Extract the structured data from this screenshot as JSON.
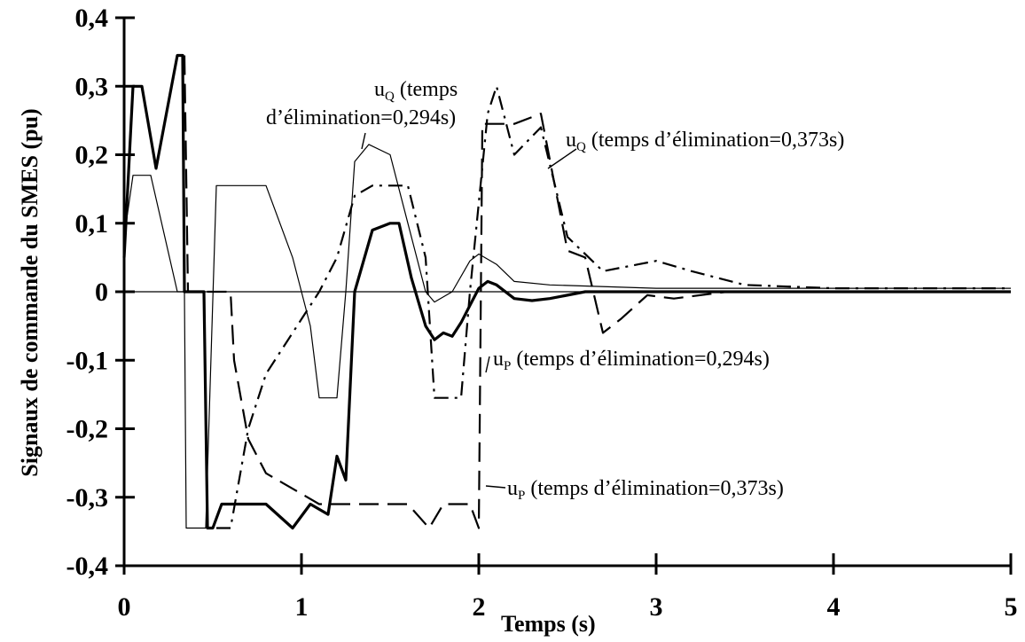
{
  "chart_data": {
    "type": "line",
    "title": "",
    "xlabel": "Temps (s)",
    "ylabel": "Signaux de commande du SMES (pu)",
    "xlim": [
      0,
      5
    ],
    "ylim": [
      -0.4,
      0.4
    ],
    "x_ticks": [
      "0",
      "1",
      "2",
      "3",
      "4",
      "5"
    ],
    "y_ticks": [
      "0,4",
      "0,3",
      "0,2",
      "0,1",
      "0",
      "-0,1",
      "-0,2",
      "-0,3",
      "-0,4"
    ],
    "grid": false,
    "legend": "none",
    "series": [
      {
        "key": "uP_0294",
        "style": "thick-solid",
        "points": [
          [
            0,
            0.05
          ],
          [
            0.05,
            0.3
          ],
          [
            0.1,
            0.3
          ],
          [
            0.18,
            0.18
          ],
          [
            0.3,
            0.345
          ],
          [
            0.33,
            0.345
          ],
          [
            0.34,
            0
          ],
          [
            0.45,
            0
          ],
          [
            0.47,
            -0.345
          ],
          [
            0.5,
            -0.345
          ],
          [
            0.55,
            -0.31
          ],
          [
            0.8,
            -0.31
          ],
          [
            0.95,
            -0.345
          ],
          [
            1.05,
            -0.31
          ],
          [
            1.15,
            -0.325
          ],
          [
            1.2,
            -0.24
          ],
          [
            1.25,
            -0.275
          ],
          [
            1.3,
            0
          ],
          [
            1.4,
            0.09
          ],
          [
            1.5,
            0.1
          ],
          [
            1.55,
            0.1
          ],
          [
            1.62,
            0.02
          ],
          [
            1.7,
            -0.05
          ],
          [
            1.75,
            -0.07
          ],
          [
            1.8,
            -0.06
          ],
          [
            1.85,
            -0.065
          ],
          [
            1.9,
            -0.045
          ],
          [
            1.95,
            -0.02
          ],
          [
            2.0,
            0.005
          ],
          [
            2.05,
            0.015
          ],
          [
            2.1,
            0.01
          ],
          [
            2.2,
            -0.01
          ],
          [
            2.3,
            -0.013
          ],
          [
            2.4,
            -0.01
          ],
          [
            2.6,
            0
          ],
          [
            3.0,
            0
          ],
          [
            5,
            0
          ]
        ]
      },
      {
        "key": "uQ_0294",
        "style": "thin-solid",
        "points": [
          [
            0,
            0.08
          ],
          [
            0.05,
            0.17
          ],
          [
            0.15,
            0.17
          ],
          [
            0.3,
            0
          ],
          [
            0.34,
            0
          ],
          [
            0.35,
            -0.345
          ],
          [
            0.46,
            -0.345
          ],
          [
            0.52,
            0.155
          ],
          [
            0.8,
            0.155
          ],
          [
            0.95,
            0.05
          ],
          [
            1.05,
            -0.05
          ],
          [
            1.1,
            -0.155
          ],
          [
            1.2,
            -0.155
          ],
          [
            1.25,
            0
          ],
          [
            1.3,
            0.19
          ],
          [
            1.38,
            0.215
          ],
          [
            1.5,
            0.2
          ],
          [
            1.6,
            0.1
          ],
          [
            1.7,
            0
          ],
          [
            1.75,
            -0.015
          ],
          [
            1.85,
            0
          ],
          [
            1.95,
            0.045
          ],
          [
            2.0,
            0.055
          ],
          [
            2.1,
            0.04
          ],
          [
            2.2,
            0.015
          ],
          [
            2.4,
            0.01
          ],
          [
            3.0,
            0.005
          ],
          [
            5,
            0.005
          ]
        ]
      },
      {
        "key": "uP_0373",
        "style": "dashed",
        "points": [
          [
            0.34,
            0.345
          ],
          [
            0.36,
            0
          ],
          [
            0.6,
            0
          ],
          [
            0.62,
            -0.1
          ],
          [
            0.7,
            -0.215
          ],
          [
            0.8,
            -0.265
          ],
          [
            1.0,
            -0.295
          ],
          [
            1.1,
            -0.31
          ],
          [
            1.6,
            -0.31
          ],
          [
            1.72,
            -0.345
          ],
          [
            1.8,
            -0.31
          ],
          [
            1.95,
            -0.31
          ],
          [
            2.0,
            -0.345
          ],
          [
            2.02,
            0.245
          ],
          [
            2.2,
            0.245
          ],
          [
            2.35,
            0.26
          ],
          [
            2.5,
            0.06
          ],
          [
            2.6,
            0.05
          ],
          [
            2.7,
            -0.06
          ],
          [
            2.8,
            -0.04
          ],
          [
            2.95,
            -0.005
          ],
          [
            3.1,
            -0.01
          ],
          [
            3.4,
            0
          ],
          [
            5,
            0
          ]
        ]
      },
      {
        "key": "uQ_0373",
        "style": "dash-dot",
        "points": [
          [
            0.52,
            -0.345
          ],
          [
            0.6,
            -0.345
          ],
          [
            0.7,
            -0.2
          ],
          [
            0.8,
            -0.12
          ],
          [
            1.0,
            -0.04
          ],
          [
            1.1,
            0
          ],
          [
            1.2,
            0.05
          ],
          [
            1.3,
            0.14
          ],
          [
            1.4,
            0.155
          ],
          [
            1.6,
            0.155
          ],
          [
            1.7,
            0.05
          ],
          [
            1.75,
            -0.155
          ],
          [
            1.9,
            -0.155
          ],
          [
            1.95,
            0
          ],
          [
            2.05,
            0.26
          ],
          [
            2.1,
            0.3
          ],
          [
            2.2,
            0.2
          ],
          [
            2.35,
            0.24
          ],
          [
            2.5,
            0.08
          ],
          [
            2.7,
            0.03
          ],
          [
            2.9,
            0.04
          ],
          [
            3.0,
            0.045
          ],
          [
            3.2,
            0.03
          ],
          [
            3.5,
            0.01
          ],
          [
            4.0,
            0.005
          ],
          [
            5,
            0.005
          ]
        ]
      }
    ],
    "annotations": [
      {
        "key": "uQ_0294_lbl",
        "main": "u",
        "sub": "Q",
        "rest": " (temps"
      },
      {
        "key": "uQ_0294_lbl2",
        "main": "d’élimination=0,294s)"
      },
      {
        "key": "uQ_0373_lbl",
        "main": "u",
        "sub": "Q",
        "rest": " (temps d’élimination=0,373s)"
      },
      {
        "key": "uP_0294_lbl",
        "main": "u",
        "sub": "P",
        "rest": " (temps d’élimination=0,294s)"
      },
      {
        "key": "uP_0373_lbl",
        "main": "u",
        "sub": "P",
        "rest": " (temps d’élimination=0,373s)"
      }
    ]
  }
}
